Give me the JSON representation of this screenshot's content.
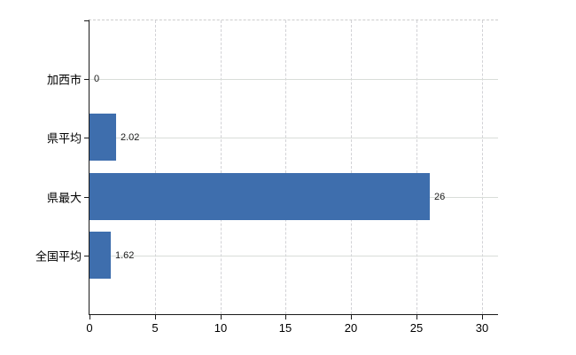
{
  "chart_data": {
    "type": "bar",
    "orientation": "horizontal",
    "title": "",
    "xlabel": "",
    "ylabel": "",
    "categories": [
      "加西市",
      "県平均",
      "県最大",
      "全国平均"
    ],
    "values": [
      0,
      2.02,
      26,
      1.62
    ],
    "value_labels": [
      "0",
      "2.02",
      "26",
      "1.62"
    ],
    "x_ticks": [
      0,
      5,
      10,
      15,
      20,
      25,
      30
    ],
    "x_tick_labels": [
      "0",
      "5",
      "10",
      "15",
      "20",
      "25",
      "30"
    ],
    "xlim": [
      0,
      31.24
    ],
    "grid": true,
    "legend": false,
    "bar_color": "#3e6ead"
  },
  "colors": {
    "bar": "#3e6ead",
    "axis": "#1a1a1a",
    "grid_horizontal": "#d9ddd9",
    "grid_vertical": "#d2d2d6",
    "border_dashed": "#cccccc",
    "background": "#ffffff",
    "text": "#000000"
  }
}
